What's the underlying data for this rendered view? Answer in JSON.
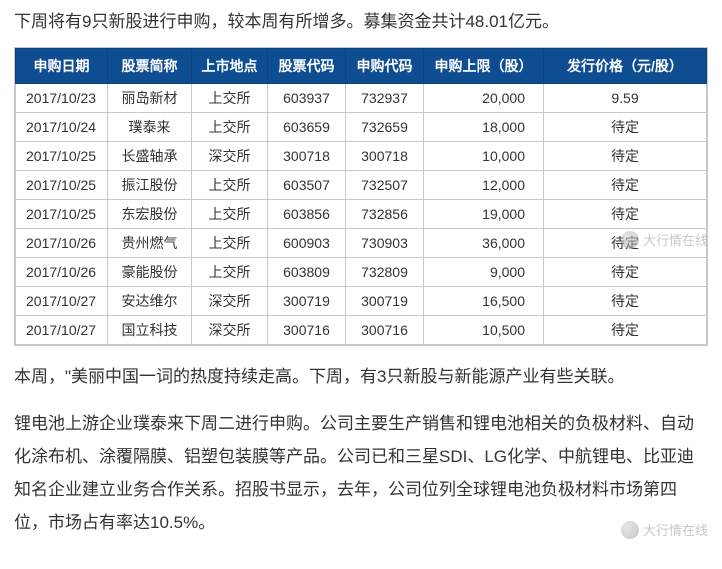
{
  "intro": "下周将有9只新股进行申购，较本周有所增多。募集资金共计48.01亿元。",
  "table": {
    "headers": [
      "申购日期",
      "股票简称",
      "上市地点",
      "股票代码",
      "申购代码",
      "申购上限（股）",
      "发行价格（元/股）"
    ],
    "rows": [
      [
        "2017/10/23",
        "丽岛新材",
        "上交所",
        "603937",
        "732937",
        "20,000",
        "9.59"
      ],
      [
        "2017/10/24",
        "璞泰来",
        "上交所",
        "603659",
        "732659",
        "18,000",
        "待定"
      ],
      [
        "2017/10/25",
        "长盛轴承",
        "深交所",
        "300718",
        "300718",
        "10,000",
        "待定"
      ],
      [
        "2017/10/25",
        "振江股份",
        "上交所",
        "603507",
        "732507",
        "12,000",
        "待定"
      ],
      [
        "2017/10/25",
        "东宏股份",
        "上交所",
        "603856",
        "732856",
        "19,000",
        "待定"
      ],
      [
        "2017/10/26",
        "贵州燃气",
        "上交所",
        "600903",
        "730903",
        "36,000",
        "待定"
      ],
      [
        "2017/10/26",
        "豪能股份",
        "上交所",
        "603809",
        "732809",
        "9,000",
        "待定"
      ],
      [
        "2017/10/27",
        "安达维尔",
        "深交所",
        "300719",
        "300719",
        "16,500",
        "待定"
      ],
      [
        "2017/10/27",
        "国立科技",
        "深交所",
        "300716",
        "300716",
        "10,500",
        "待定"
      ]
    ],
    "header_bg": "#0f4d92",
    "header_fg": "#ffffff",
    "border_color": "#c5c9cc",
    "col_align": [
      "left",
      "center",
      "center",
      "center",
      "center",
      "right",
      "center"
    ]
  },
  "para1": "本周，\"美丽中国一词的热度持续走高。下周，有3只新股与新能源产业有些关联。",
  "para2": "锂电池上游企业璞泰来下周二进行申购。公司主要生产销售和锂电池相关的负极材料、自动化涂布机、涂覆隔膜、铝塑包装膜等产品。公司已和三星SDI、LG化学、中航锂电、比亚迪知名企业建立业务合作关系。招股书显示，去年，公司位列全球锂电池负极材料市场第四位，市场占有率达10.5%。",
  "watermark_text": "大行情在线"
}
